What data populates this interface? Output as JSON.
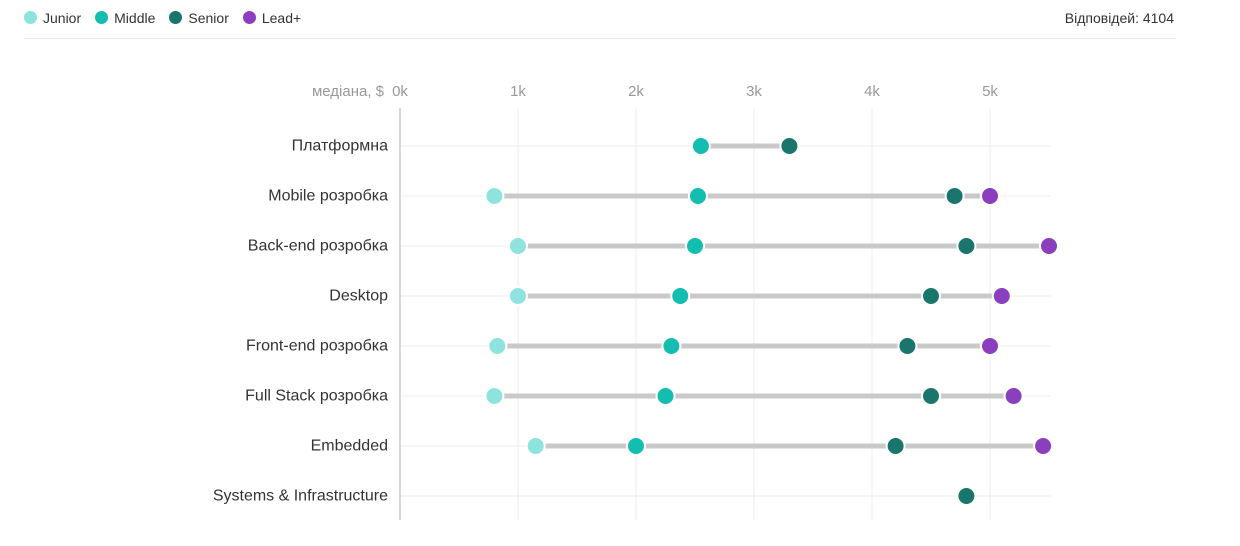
{
  "legend": {
    "items": [
      {
        "label": "Junior",
        "color": "#8ee3de"
      },
      {
        "label": "Middle",
        "color": "#13bdb0"
      },
      {
        "label": "Senior",
        "color": "#1a756d"
      },
      {
        "label": "Lead+",
        "color": "#8b3fbf"
      }
    ]
  },
  "responses": "Відповідей: 4104",
  "chart_data": {
    "type": "dot-range",
    "xlabel": "медіана, $",
    "xlim": [
      0,
      5500
    ],
    "x_ticks": [
      {
        "value": 0,
        "label": "0k"
      },
      {
        "value": 1000,
        "label": "1k"
      },
      {
        "value": 2000,
        "label": "2k"
      },
      {
        "value": 3000,
        "label": "3k"
      },
      {
        "value": 4000,
        "label": "4k"
      },
      {
        "value": 5000,
        "label": "5k"
      }
    ],
    "grid": true,
    "legend_position": "top-left",
    "series_order": [
      "Junior",
      "Middle",
      "Senior",
      "Lead+"
    ],
    "categories": [
      "Платформна",
      "Mobile розробка",
      "Back-end розробка",
      "Desktop",
      "Front-end розробка",
      "Full Stack розробка",
      "Embedded",
      "Systems & Infrastructure"
    ],
    "values": [
      {
        "Junior": null,
        "Middle": 2550,
        "Senior": 3300,
        "Lead+": null
      },
      {
        "Junior": 800,
        "Middle": 2525,
        "Senior": 4700,
        "Lead+": 5000
      },
      {
        "Junior": 1000,
        "Middle": 2500,
        "Senior": 4800,
        "Lead+": 5500
      },
      {
        "Junior": 1000,
        "Middle": 2375,
        "Senior": 4500,
        "Lead+": 5100
      },
      {
        "Junior": 825,
        "Middle": 2300,
        "Senior": 4300,
        "Lead+": 5000
      },
      {
        "Junior": 800,
        "Middle": 2250,
        "Senior": 4500,
        "Lead+": 5200
      },
      {
        "Junior": 1150,
        "Middle": 2000,
        "Senior": 4200,
        "Lead+": 5450
      },
      {
        "Junior": null,
        "Middle": null,
        "Senior": 4800,
        "Lead+": null
      }
    ]
  }
}
